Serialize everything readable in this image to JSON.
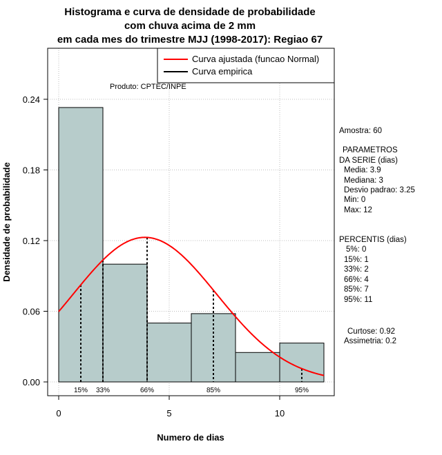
{
  "chart_data": {
    "type": "histogram",
    "title_lines": [
      "Histograma e curva de densidade de probabilidade",
      "com chuva acima de 2 mm",
      "em cada mes do trimestre MJJ (1998-2017): Regiao 67"
    ],
    "xlabel": "Numero de dias",
    "ylabel": "Densidade de probabilidade",
    "xlim": [
      0,
      12
    ],
    "ylim": [
      0,
      0.24
    ],
    "x_ticks": [
      0,
      5,
      10
    ],
    "x_tick_labels": [
      "0",
      "5",
      "10"
    ],
    "y_ticks": [
      0.0,
      0.06,
      0.12,
      0.18,
      0.24
    ],
    "y_tick_labels": [
      "0.00",
      "0.06",
      "0.12",
      "0.18",
      "0.24"
    ],
    "grid": true,
    "bins": [
      {
        "x0": 0,
        "x1": 2,
        "density": 0.233
      },
      {
        "x0": 2,
        "x1": 4,
        "density": 0.1
      },
      {
        "x0": 4,
        "x1": 6,
        "density": 0.05
      },
      {
        "x0": 6,
        "x1": 8,
        "density": 0.058
      },
      {
        "x0": 8,
        "x1": 10,
        "density": 0.025
      },
      {
        "x0": 10,
        "x1": 12,
        "density": 0.033
      }
    ],
    "bar_color": "#b7cccb",
    "fitted_curve": {
      "name": "Curva ajustada (funcao Normal)",
      "color": "#ff0000",
      "mean": 3.9,
      "sd": 3.25,
      "x_range": [
        0,
        12
      ]
    },
    "empirical_curve": {
      "name": "Curva empirica",
      "color": "#000000"
    },
    "percentile_lines": [
      {
        "x": 1,
        "label": "15%"
      },
      {
        "x": 2,
        "label": "33%"
      },
      {
        "x": 4,
        "label": "66%"
      },
      {
        "x": 7,
        "label": "85%"
      },
      {
        "x": 11,
        "label": "95%"
      }
    ],
    "legend_position": "top-right"
  },
  "annotation": {
    "produto": "Produto: CPTEC/INPE"
  },
  "side_panel": {
    "amostra": "Amostra: 60",
    "parametros_title_1": "PARAMETROS",
    "parametros_title_2": "DA SERIE (dias)",
    "media": "Media: 3.9",
    "mediana": "Mediana: 3",
    "desvio": "Desvio padrao: 3.25",
    "min": "Min: 0",
    "max": "Max: 12",
    "percentis_title": "PERCENTIS (dias)",
    "p5": "5%: 0",
    "p15": "15%: 1",
    "p33": "33%: 2",
    "p66": "66%: 4",
    "p85": "85%: 7",
    "p95": "95%: 11",
    "curtose": "Curtose: 0.92",
    "assimetria": "Assimetria: 0.2"
  }
}
